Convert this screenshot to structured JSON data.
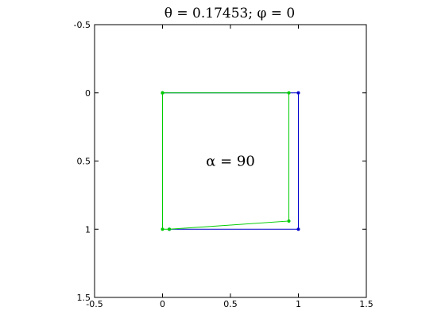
{
  "chart_data": {
    "type": "line",
    "title": "θ = 0.17453; φ = 0",
    "xlabel": "",
    "ylabel": "",
    "xlim": [
      -0.5,
      1.5
    ],
    "ylim": [
      -0.5,
      1.5
    ],
    "y_reversed": true,
    "xticks": [
      -0.5,
      0,
      0.5,
      1,
      1.5
    ],
    "xtick_labels": [
      "-0.5",
      "0",
      "0.5",
      "1",
      "1.5"
    ],
    "yticks": [
      -0.5,
      0,
      0.5,
      1,
      1.5
    ],
    "ytick_labels": [
      "-0.5",
      "0",
      "0.5",
      "1",
      "1.5"
    ],
    "grid": false,
    "annotation": {
      "text": "α = 90",
      "x": 0.5,
      "y": 0.5
    },
    "series": [
      {
        "color": "#0000cc",
        "marker": "dot",
        "x": [
          0,
          1,
          1,
          0.05
        ],
        "y": [
          0,
          0,
          1,
          1
        ]
      },
      {
        "color": "#00cc00",
        "marker": "dot",
        "x": [
          0,
          0.93,
          0.93,
          0.05,
          0,
          0
        ],
        "y": [
          0,
          0,
          0.94,
          1,
          1,
          0
        ]
      }
    ]
  }
}
